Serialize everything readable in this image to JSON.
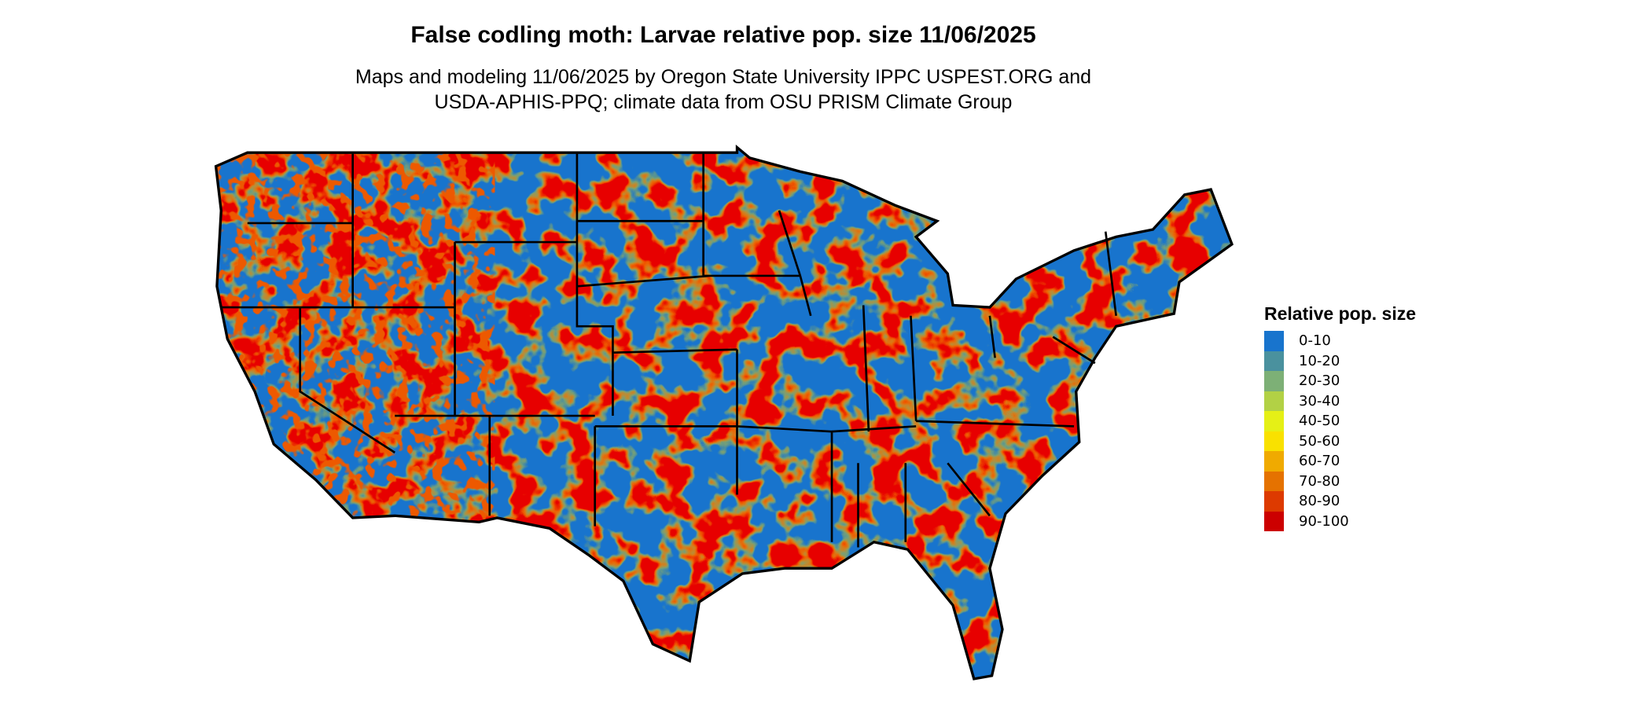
{
  "title": "False codling moth: Larvae relative pop. size 11/06/2025",
  "subtitle_lines": [
    "Maps and modeling 11/06/2025 by Oregon State University IPPC USPEST.ORG and",
    "USDA-APHIS-PPQ; climate data from OSU PRISM Climate Group"
  ],
  "map": {
    "region": "Contiguous United States",
    "dominant_class": "0-10",
    "high_class_color": "#CC0000"
  },
  "legend": {
    "title": "Relative pop. size",
    "items": [
      {
        "label": "0-10",
        "color": "#1874CD"
      },
      {
        "label": "10-20",
        "color": "#4A919E"
      },
      {
        "label": "20-30",
        "color": "#7DB076"
      },
      {
        "label": "30-40",
        "color": "#B2D145"
      },
      {
        "label": "40-50",
        "color": "#E5F016"
      },
      {
        "label": "50-60",
        "color": "#F9E100"
      },
      {
        "label": "60-70",
        "color": "#F0AA00"
      },
      {
        "label": "70-80",
        "color": "#E57200"
      },
      {
        "label": "80-90",
        "color": "#DD3A00"
      },
      {
        "label": "90-100",
        "color": "#CC0000"
      }
    ]
  }
}
